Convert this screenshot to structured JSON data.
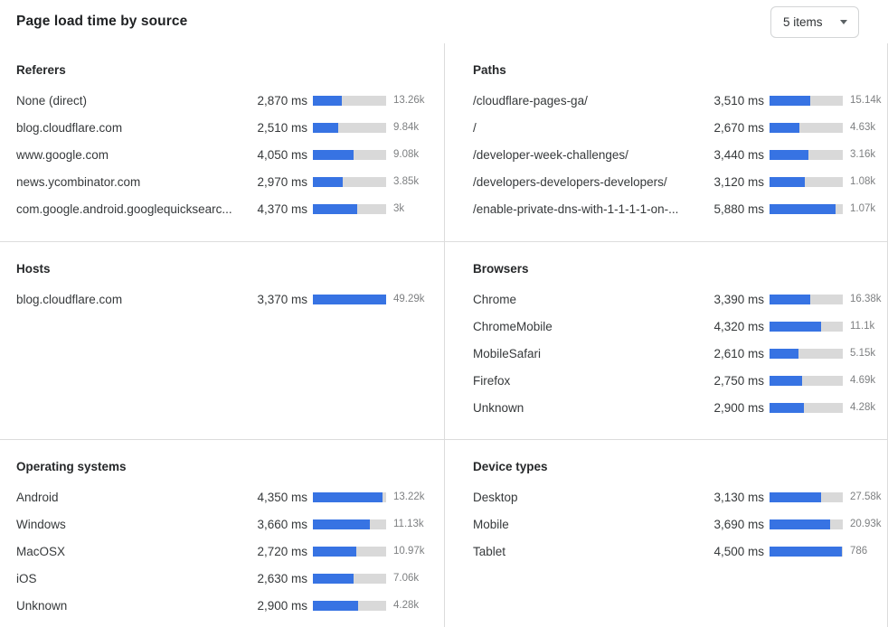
{
  "header": {
    "title": "Page load time by source",
    "items_select": {
      "value": "5 items"
    }
  },
  "colors": {
    "bar_fill": "#3773e3",
    "bar_track": "#d9d9d9",
    "divider": "#dcdcdc"
  },
  "chart_data": [
    {
      "type": "bar",
      "title": "Referers",
      "unit": "ms",
      "rows": [
        {
          "label": "None (direct)",
          "value_ms": 2870,
          "value": "2,870 ms",
          "count": "13.26k",
          "bar_pct": 40
        },
        {
          "label": "blog.cloudflare.com",
          "value_ms": 2510,
          "value": "2,510 ms",
          "count": "9.84k",
          "bar_pct": 35
        },
        {
          "label": "www.google.com",
          "value_ms": 4050,
          "value": "4,050 ms",
          "count": "9.08k",
          "bar_pct": 56
        },
        {
          "label": "news.ycombinator.com",
          "value_ms": 2970,
          "value": "2,970 ms",
          "count": "3.85k",
          "bar_pct": 41
        },
        {
          "label": "com.google.android.googlequicksearc...",
          "value_ms": 4370,
          "value": "4,370 ms",
          "count": "3k",
          "bar_pct": 60
        }
      ]
    },
    {
      "type": "bar",
      "title": "Paths",
      "unit": "ms",
      "rows": [
        {
          "label": "/cloudflare-pages-ga/",
          "value_ms": 3510,
          "value": "3,510 ms",
          "count": "15.14k",
          "bar_pct": 56
        },
        {
          "label": "/",
          "value_ms": 2670,
          "value": "2,670 ms",
          "count": "4.63k",
          "bar_pct": 41
        },
        {
          "label": "/developer-week-challenges/",
          "value_ms": 3440,
          "value": "3,440 ms",
          "count": "3.16k",
          "bar_pct": 53
        },
        {
          "label": "/developers-developers-developers/",
          "value_ms": 3120,
          "value": "3,120 ms",
          "count": "1.08k",
          "bar_pct": 48
        },
        {
          "label": "/enable-private-dns-with-1-1-1-1-on-...",
          "value_ms": 5880,
          "value": "5,880 ms",
          "count": "1.07k",
          "bar_pct": 90
        }
      ]
    },
    {
      "type": "bar",
      "title": "Hosts",
      "unit": "ms",
      "rows": [
        {
          "label": "blog.cloudflare.com",
          "value_ms": 3370,
          "value": "3,370 ms",
          "count": "49.29k",
          "bar_pct": 100
        }
      ]
    },
    {
      "type": "bar",
      "title": "Browsers",
      "unit": "ms",
      "rows": [
        {
          "label": "Chrome",
          "value_ms": 3390,
          "value": "3,390 ms",
          "count": "16.38k",
          "bar_pct": 55
        },
        {
          "label": "ChromeMobile",
          "value_ms": 4320,
          "value": "4,320 ms",
          "count": "11.1k",
          "bar_pct": 70
        },
        {
          "label": "MobileSafari",
          "value_ms": 2610,
          "value": "2,610 ms",
          "count": "5.15k",
          "bar_pct": 40
        },
        {
          "label": "Firefox",
          "value_ms": 2750,
          "value": "2,750 ms",
          "count": "4.69k",
          "bar_pct": 44
        },
        {
          "label": "Unknown",
          "value_ms": 2900,
          "value": "2,900 ms",
          "count": "4.28k",
          "bar_pct": 47
        }
      ]
    },
    {
      "type": "bar",
      "title": "Operating systems",
      "unit": "ms",
      "rows": [
        {
          "label": "Android",
          "value_ms": 4350,
          "value": "4,350 ms",
          "count": "13.22k",
          "bar_pct": 95
        },
        {
          "label": "Windows",
          "value_ms": 3660,
          "value": "3,660 ms",
          "count": "11.13k",
          "bar_pct": 78
        },
        {
          "label": "MacOSX",
          "value_ms": 2720,
          "value": "2,720 ms",
          "count": "10.97k",
          "bar_pct": 59
        },
        {
          "label": "iOS",
          "value_ms": 2630,
          "value": "2,630 ms",
          "count": "7.06k",
          "bar_pct": 56
        },
        {
          "label": "Unknown",
          "value_ms": 2900,
          "value": "2,900 ms",
          "count": "4.28k",
          "bar_pct": 62
        }
      ]
    },
    {
      "type": "bar",
      "title": "Device types",
      "unit": "ms",
      "rows": [
        {
          "label": "Desktop",
          "value_ms": 3130,
          "value": "3,130 ms",
          "count": "27.58k",
          "bar_pct": 70
        },
        {
          "label": "Mobile",
          "value_ms": 3690,
          "value": "3,690 ms",
          "count": "20.93k",
          "bar_pct": 83
        },
        {
          "label": "Tablet",
          "value_ms": 4500,
          "value": "4,500 ms",
          "count": "786",
          "bar_pct": 99
        }
      ]
    }
  ]
}
